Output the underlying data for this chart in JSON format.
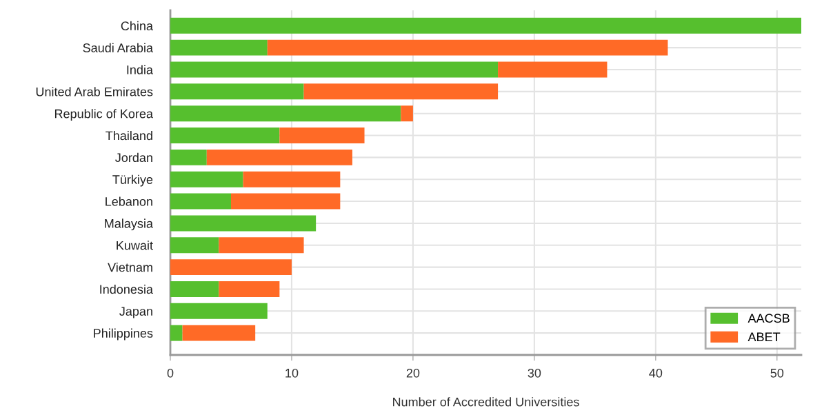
{
  "chart_data": {
    "type": "bar",
    "orientation": "horizontal",
    "stacked": true,
    "categories": [
      "China",
      "Saudi Arabia",
      "India",
      "United Arab Emirates",
      "Republic of Korea",
      "Thailand",
      "Jordan",
      "Türkiye",
      "Lebanon",
      "Malaysia",
      "Kuwait",
      "Vietnam",
      "Indonesia",
      "Japan",
      "Philippines"
    ],
    "series": [
      {
        "name": "AACSB",
        "color": "#56bf2e",
        "values": [
          52,
          8,
          27,
          11,
          19,
          9,
          3,
          6,
          5,
          12,
          4,
          0,
          4,
          8,
          1
        ]
      },
      {
        "name": "ABET",
        "color": "#ff6a26",
        "values": [
          0,
          33,
          9,
          16,
          1,
          7,
          12,
          8,
          9,
          0,
          7,
          10,
          5,
          0,
          6
        ]
      }
    ],
    "xlabel": "Number of Accredited Universities",
    "xlim": [
      0,
      52
    ],
    "xticks": [
      0,
      10,
      20,
      30,
      40,
      50
    ],
    "grid": true,
    "legend": "bottom right"
  }
}
